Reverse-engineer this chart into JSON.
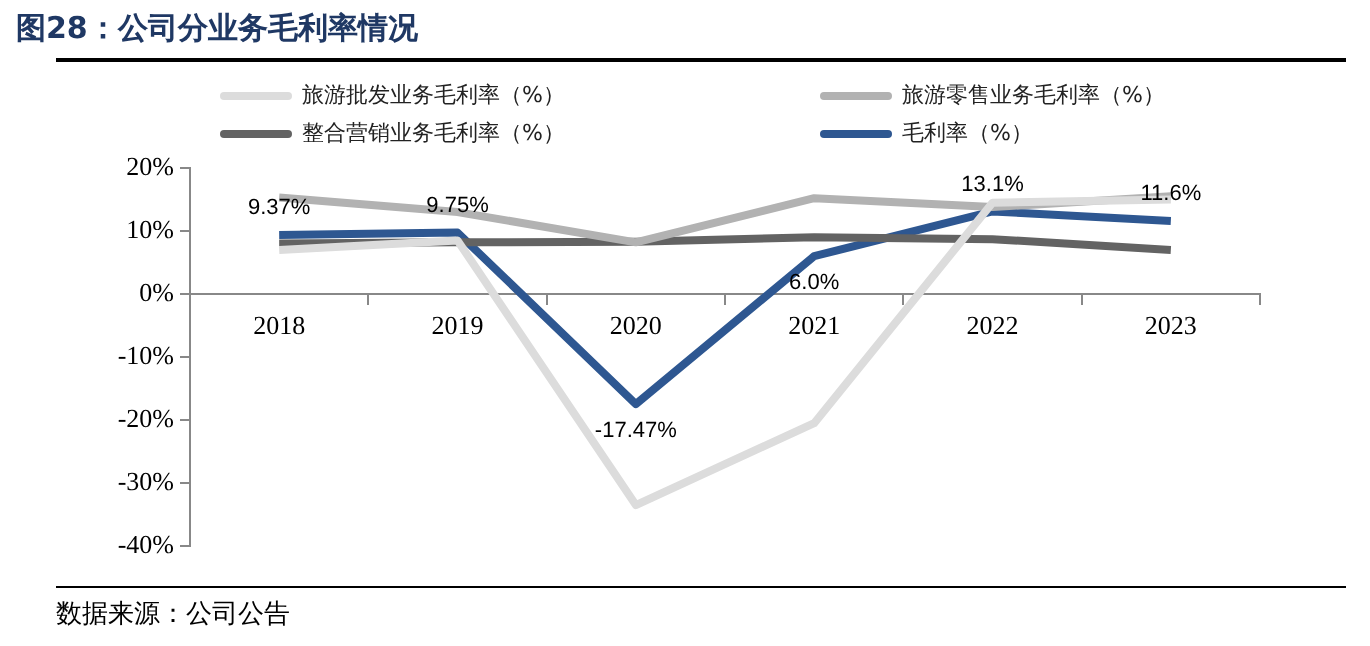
{
  "chart_data": {
    "type": "line",
    "title": "图28：公司分业务毛利率情况",
    "annotations": [
      "数据来源：公司公告"
    ],
    "categories": [
      "2018",
      "2019",
      "2020",
      "2021",
      "2022",
      "2023"
    ],
    "series": [
      {
        "name": "旅游批发业务毛利率（%）",
        "color": "#dcdcdc",
        "values": [
          7,
          8.5,
          -33.5,
          -20.5,
          14.5,
          15
        ]
      },
      {
        "name": "旅游零售业务毛利率（%）",
        "color": "#b2b2b2",
        "values": [
          15.3,
          13,
          8.2,
          15.2,
          13.8,
          15.5
        ]
      },
      {
        "name": "整合营销业务毛利率（%）",
        "color": "#636363",
        "values": [
          8,
          8.2,
          8.3,
          9,
          8.7,
          7
        ]
      },
      {
        "name": "毛利率（%）",
        "color": "#2e5791",
        "values": [
          9.37,
          9.75,
          -17.47,
          6.0,
          13.1,
          11.6
        ],
        "value_labels": [
          "9.37%",
          "9.75%",
          "-17.47%",
          "6.0%",
          "13.1%",
          "11.6%"
        ]
      }
    ],
    "ylim": [
      -40,
      20
    ],
    "yticks": [
      {
        "value": -40,
        "label": "-40%"
      },
      {
        "value": -30,
        "label": "-30%"
      },
      {
        "value": -20,
        "label": "-20%"
      },
      {
        "value": -10,
        "label": "-10%"
      },
      {
        "value": 0,
        "label": "0%"
      },
      {
        "value": 10,
        "label": "10%"
      },
      {
        "value": 20,
        "label": "20%"
      }
    ],
    "grid": false,
    "legend": "top",
    "marker": "none",
    "line_style": "solid"
  }
}
